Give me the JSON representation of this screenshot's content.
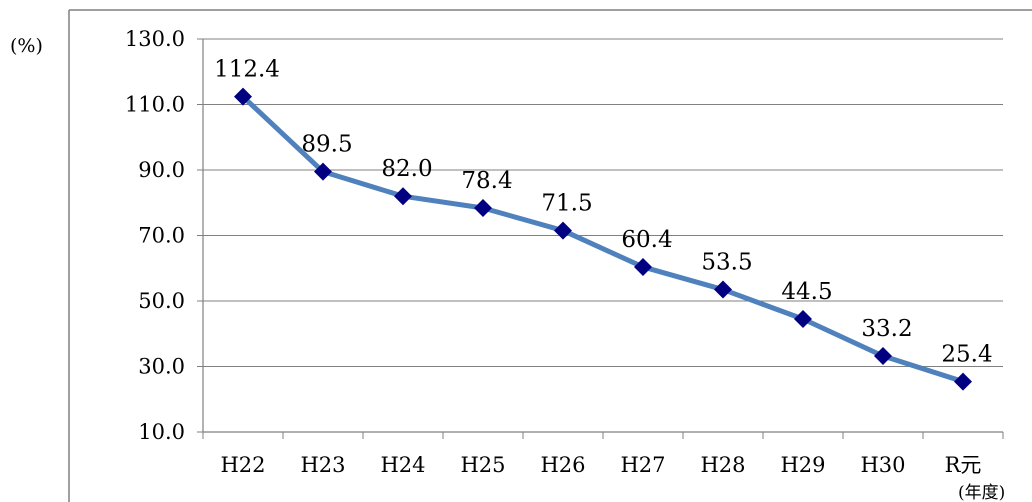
{
  "chart_data": {
    "type": "line",
    "y_unit": "(%)",
    "x_unit": "(年度)",
    "categories": [
      "H22",
      "H23",
      "H24",
      "H25",
      "H26",
      "H27",
      "H28",
      "H29",
      "H30",
      "R元"
    ],
    "series": [
      {
        "values": [
          112.4,
          89.5,
          82.0,
          78.4,
          71.5,
          60.4,
          53.5,
          44.5,
          33.2,
          25.4
        ]
      }
    ],
    "data_labels": [
      "112.4",
      "89.5",
      "82.0",
      "78.4",
      "71.5",
      "60.4",
      "53.5",
      "44.5",
      "33.2",
      "25.4"
    ],
    "ylim": [
      10,
      130
    ],
    "y_ticks": [
      10,
      30,
      50,
      70,
      90,
      110,
      130
    ],
    "y_tick_labels": [
      "10.0",
      "30.0",
      "50.0",
      "70.0",
      "90.0",
      "110.0",
      "130.0"
    ],
    "grid": true,
    "legend": "none",
    "colors": {
      "line": "#4f81bd",
      "marker": "#000080",
      "grid": "#808080"
    }
  }
}
